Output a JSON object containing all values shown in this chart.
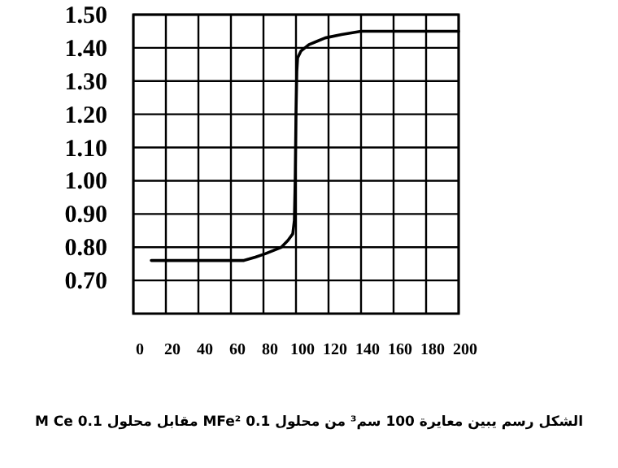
{
  "chart_data": {
    "type": "line",
    "x": [
      11,
      20,
      40,
      60,
      68,
      75,
      81,
      86,
      91,
      95,
      98,
      99,
      99.5,
      100,
      100.5,
      101,
      103,
      108,
      113,
      118,
      128,
      140,
      160,
      180,
      200
    ],
    "values": [
      0.76,
      0.76,
      0.76,
      0.76,
      0.76,
      0.77,
      0.78,
      0.79,
      0.8,
      0.82,
      0.84,
      0.88,
      1.0,
      1.2,
      1.33,
      1.37,
      1.39,
      1.41,
      1.42,
      1.43,
      1.44,
      1.45,
      1.45,
      1.45,
      1.45
    ],
    "color": "#000000",
    "marker": "none",
    "line_style": "solid",
    "xlim": [
      0,
      200
    ],
    "xticks": [
      0,
      20,
      40,
      60,
      80,
      100,
      120,
      140,
      160,
      180,
      200
    ],
    "ylim": [
      0.6,
      1.5
    ],
    "yticks": [
      {
        "value": 0.7,
        "label": "0.70"
      },
      {
        "value": 0.8,
        "label": "0.80"
      },
      {
        "value": 0.9,
        "label": "0.90"
      },
      {
        "value": 1.0,
        "label": "1.00"
      },
      {
        "value": 1.1,
        "label": "1.10"
      },
      {
        "value": 1.2,
        "label": "1.20"
      },
      {
        "value": 1.3,
        "label": "1.30"
      },
      {
        "value": 1.4,
        "label": "1.40"
      },
      {
        "value": 1.5,
        "label": "1.50"
      }
    ],
    "grid": true,
    "annotations": [
      "الشكل  رسم يبين معايرة 100 سم³ من محلول 0.1 MFe² مقابل محلول 0.1 M Ce"
    ]
  }
}
